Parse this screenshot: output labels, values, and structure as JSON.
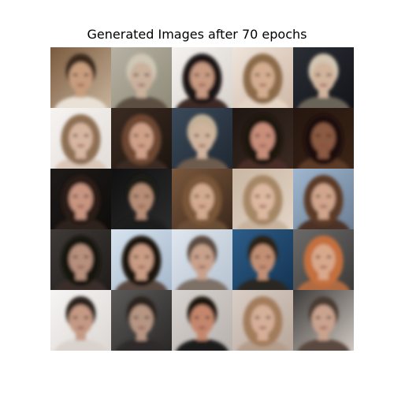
{
  "title": "Generated Images after 70 epochs",
  "colors": {
    "page_background": "#ffffff",
    "title_text": "#000000"
  },
  "tiles": [
    {
      "bg": "#7a5a3e",
      "bg2": "#c7b39b",
      "hair": "#3b2a1c",
      "skin": "#c79d7e",
      "shirt": "#e9e1d6",
      "hair_long": false
    },
    {
      "bg": "#b7b2a4",
      "bg2": "#8f8a78",
      "hair": "#cfc7b5",
      "skin": "#c9b19c",
      "shirt": "#5b5042",
      "hair_long": false
    },
    {
      "bg": "#f4f2f0",
      "bg2": "#d8d2cc",
      "hair": "#1d1612",
      "skin": "#c79a82",
      "shirt": "#3d2a26",
      "hair_long": true
    },
    {
      "bg": "#efe5dc",
      "bg2": "#cfb8a6",
      "hair": "#8b6a4a",
      "skin": "#d4ad90",
      "shirt": "#e6d5c5",
      "hair_long": true
    },
    {
      "bg": "#2b2e35",
      "bg2": "#121419",
      "hair": "#d3c6b3",
      "skin": "#d1b49c",
      "shirt": "#6b6459",
      "hair_long": false
    },
    {
      "bg": "#f6f4f2",
      "bg2": "#e3ddd8",
      "hair": "#8e6f52",
      "skin": "#d7b6a0",
      "shirt": "#d9c6b6",
      "hair_long": true
    },
    {
      "bg": "#3b2b22",
      "bg2": "#1d1510",
      "hair": "#6d4630",
      "skin": "#cfa088",
      "shirt": "#3a2a22",
      "hair_long": true
    },
    {
      "bg": "#3b4a5a",
      "bg2": "#1f2832",
      "hair": "#c3b097",
      "skin": "#d0b39d",
      "shirt": "#6d5b4e",
      "hair_long": false
    },
    {
      "bg": "#1f1612",
      "bg2": "#3a2a22",
      "hair": "#1a120e",
      "skin": "#c88e7a",
      "shirt": "#4a2f28",
      "hair_long": true
    },
    {
      "bg": "#24160f",
      "bg2": "#3a2416",
      "hair": "#1a0e0a",
      "skin": "#8b5a42",
      "shirt": "#5b3a28",
      "hair_long": true
    },
    {
      "bg": "#1d1a18",
      "bg2": "#0f0d0c",
      "hair": "#2a1b14",
      "skin": "#c79480",
      "shirt": "#2f221c",
      "hair_long": true
    },
    {
      "bg": "#101010",
      "bg2": "#2b2b2b",
      "hair": "#1d1a18",
      "skin": "#b68d76",
      "shirt": "#1a1a1a",
      "hair_long": false
    },
    {
      "bg": "#7b583d",
      "bg2": "#3c281c",
      "hair": "#7a5637",
      "skin": "#d2aa8e",
      "shirt": "#6b4d36",
      "hair_long": true
    },
    {
      "bg": "#c9b6a3",
      "bg2": "#e2d4c6",
      "hair": "#a58665",
      "skin": "#dbb89f",
      "shirt": "#c8b29d",
      "hair_long": true
    },
    {
      "bg": "#9fb7cf",
      "bg2": "#6c7f95",
      "hair": "#5b3a25",
      "skin": "#d0a58c",
      "shirt": "#4b3326",
      "hair_long": true
    },
    {
      "bg": "#3f3a37",
      "bg2": "#1f1c1a",
      "hair": "#141210",
      "skin": "#b78f7d",
      "shirt": "#3a2e2a",
      "hair_long": true
    },
    {
      "bg": "#d6e2ee",
      "bg2": "#a7b9cc",
      "hair": "#1a1411",
      "skin": "#c99c84",
      "shirt": "#5a4a40",
      "hair_long": true
    },
    {
      "bg": "#dfe6ee",
      "bg2": "#b6c3d1",
      "hair": "#5a4b40",
      "skin": "#c7a18c",
      "shirt": "#7d6f66",
      "hair_long": false
    },
    {
      "bg": "#2c5d8a",
      "bg2": "#153451",
      "hair": "#2a2018",
      "skin": "#c28f74",
      "shirt": "#2a2522",
      "hair_long": false
    },
    {
      "bg": "#6b6a68",
      "bg2": "#3c3b3a",
      "hair": "#c46f3d",
      "skin": "#d9a88a",
      "shirt": "#b06b42",
      "hair_long": true
    },
    {
      "bg": "#f6f5f4",
      "bg2": "#dcd7d3",
      "hair": "#2b221d",
      "skin": "#c49a84",
      "shirt": "#dad3cd",
      "hair_long": false
    },
    {
      "bg": "#5c5a59",
      "bg2": "#2a2928",
      "hair": "#2a221e",
      "skin": "#b69582",
      "shirt": "#2f2b29",
      "hair_long": false
    },
    {
      "bg": "#d7d3d0",
      "bg2": "#b8b2ad",
      "hair": "#1c1410",
      "skin": "#c4876d",
      "shirt": "#1a1a1a",
      "hair_long": false
    },
    {
      "bg": "#d9cec6",
      "bg2": "#b8a79a",
      "hair": "#a37b5c",
      "skin": "#d5af98",
      "shirt": "#b59d8b",
      "hair_long": true
    },
    {
      "bg": "#3c3a39",
      "bg2": "#d0c8c1",
      "hair": "#4a3a30",
      "skin": "#c9a38e",
      "shirt": "#5a4a41",
      "hair_long": false
    }
  ]
}
